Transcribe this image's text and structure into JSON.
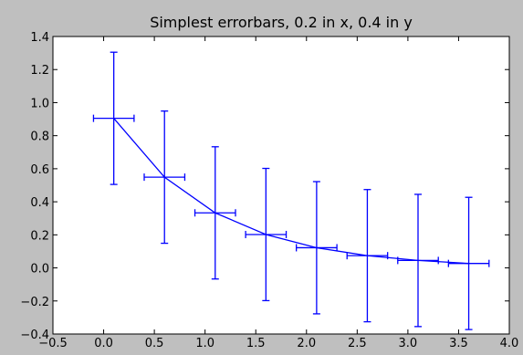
{
  "chart_data": {
    "type": "line",
    "title": "Simplest errorbars, 0.2 in x, 0.4 in y",
    "xlabel": "",
    "ylabel": "",
    "xlim": [
      -0.5,
      4.0
    ],
    "ylim": [
      -0.4,
      1.4
    ],
    "x_ticks": [
      -0.5,
      0.0,
      0.5,
      1.0,
      1.5,
      2.0,
      2.5,
      3.0,
      3.5,
      4.0
    ],
    "x_tick_labels": [
      "−0.5",
      "0.0",
      "0.5",
      "1.0",
      "1.5",
      "2.0",
      "2.5",
      "3.0",
      "3.5",
      "4.0"
    ],
    "y_ticks": [
      -0.4,
      -0.2,
      0.0,
      0.2,
      0.4,
      0.6,
      0.8,
      1.0,
      1.2,
      1.4
    ],
    "y_tick_labels": [
      "−0.4",
      "−0.2",
      "0.0",
      "0.2",
      "0.4",
      "0.6",
      "0.8",
      "1.0",
      "1.2",
      "1.4"
    ],
    "grid": false,
    "legend": "none",
    "colors": {
      "series": "#0000ff",
      "background": "#bfbfbf",
      "axes_face": "#ffffff"
    },
    "series": [
      {
        "x": [
          0.1,
          0.6,
          1.1,
          1.6,
          2.1,
          2.6,
          3.1,
          3.6
        ],
        "y": [
          0.905,
          0.549,
          0.333,
          0.202,
          0.122,
          0.074,
          0.045,
          0.027
        ],
        "xerr": [
          0.2,
          0.2,
          0.2,
          0.2,
          0.2,
          0.2,
          0.2,
          0.2
        ],
        "yerr": [
          0.4,
          0.4,
          0.4,
          0.4,
          0.4,
          0.4,
          0.4,
          0.4
        ]
      }
    ]
  }
}
